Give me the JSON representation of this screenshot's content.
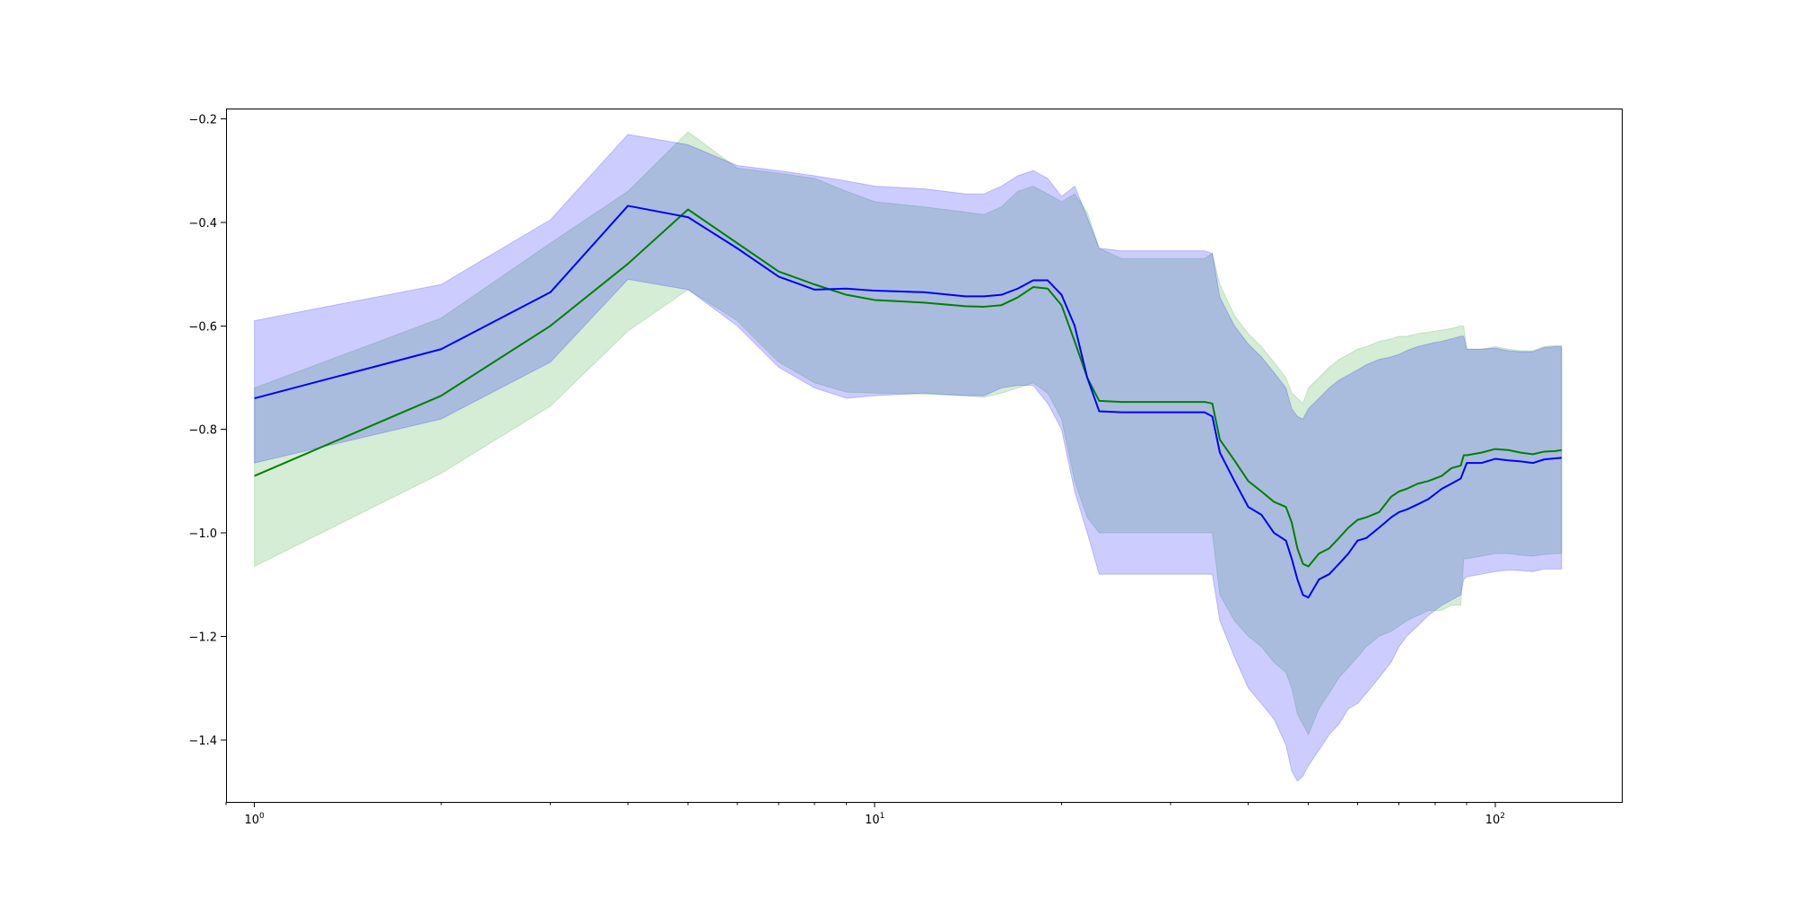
{
  "chart_data": {
    "type": "line",
    "title": "",
    "xlabel": "",
    "ylabel": "",
    "x_scale": "log",
    "xlim": [
      0.9,
      160
    ],
    "ylim": [
      -1.52,
      -0.18
    ],
    "grid": false,
    "x_ticks": [
      {
        "value": 1,
        "base": "10",
        "exp": "0"
      },
      {
        "value": 10,
        "base": "10",
        "exp": "1"
      },
      {
        "value": 100,
        "base": "10",
        "exp": "2"
      }
    ],
    "y_ticks": [
      {
        "value": -0.2,
        "label": "−0.2"
      },
      {
        "value": -0.4,
        "label": "−0.4"
      },
      {
        "value": -0.6,
        "label": "−0.6"
      },
      {
        "value": -0.8,
        "label": "−0.8"
      },
      {
        "value": -1.0,
        "label": "−1.0"
      },
      {
        "value": -1.2,
        "label": "−1.2"
      },
      {
        "value": -1.4,
        "label": "−1.4"
      }
    ],
    "x": [
      1,
      2,
      3,
      4,
      5,
      6,
      7,
      8,
      9,
      10,
      12,
      14,
      15,
      16,
      17,
      18,
      19,
      20,
      21,
      22,
      23,
      25,
      30,
      34,
      35,
      36,
      38,
      40,
      42,
      44,
      46,
      47,
      48,
      49,
      50,
      52,
      54,
      56,
      58,
      60,
      62,
      65,
      68,
      70,
      72,
      75,
      78,
      80,
      82,
      85,
      88,
      89,
      90,
      95,
      100,
      105,
      110,
      115,
      120,
      125,
      128
    ],
    "series": [
      {
        "color": "#008000",
        "band_color": "#2ca02c",
        "values": [
          -0.89,
          -0.735,
          -0.6,
          -0.48,
          -0.375,
          -0.44,
          -0.495,
          -0.52,
          -0.54,
          -0.55,
          -0.555,
          -0.562,
          -0.563,
          -0.56,
          -0.545,
          -0.525,
          -0.528,
          -0.56,
          -0.63,
          -0.7,
          -0.745,
          -0.747,
          -0.747,
          -0.747,
          -0.75,
          -0.82,
          -0.86,
          -0.9,
          -0.92,
          -0.94,
          -0.95,
          -0.98,
          -1.03,
          -1.06,
          -1.065,
          -1.04,
          -1.03,
          -1.01,
          -0.99,
          -0.975,
          -0.97,
          -0.96,
          -0.93,
          -0.92,
          -0.915,
          -0.905,
          -0.9,
          -0.895,
          -0.89,
          -0.875,
          -0.87,
          -0.85,
          -0.85,
          -0.845,
          -0.838,
          -0.84,
          -0.845,
          -0.848,
          -0.843,
          -0.842,
          -0.84
        ],
        "lower": [
          -1.065,
          -0.885,
          -0.755,
          -0.61,
          -0.53,
          -0.59,
          -0.67,
          -0.71,
          -0.728,
          -0.73,
          -0.732,
          -0.735,
          -0.738,
          -0.73,
          -0.72,
          -0.71,
          -0.73,
          -0.78,
          -0.9,
          -0.97,
          -1.0,
          -1.0,
          -1.0,
          -1.0,
          -1.0,
          -1.12,
          -1.17,
          -1.2,
          -1.22,
          -1.25,
          -1.27,
          -1.3,
          -1.35,
          -1.37,
          -1.39,
          -1.34,
          -1.31,
          -1.28,
          -1.26,
          -1.24,
          -1.22,
          -1.2,
          -1.19,
          -1.18,
          -1.17,
          -1.16,
          -1.15,
          -1.15,
          -1.15,
          -1.14,
          -1.14,
          -1.05,
          -1.05,
          -1.045,
          -1.04,
          -1.04,
          -1.043,
          -1.045,
          -1.042,
          -1.04,
          -1.04
        ],
        "upper": [
          -0.72,
          -0.585,
          -0.44,
          -0.34,
          -0.225,
          -0.295,
          -0.305,
          -0.315,
          -0.34,
          -0.36,
          -0.37,
          -0.38,
          -0.385,
          -0.37,
          -0.34,
          -0.33,
          -0.345,
          -0.36,
          -0.345,
          -0.38,
          -0.45,
          -0.47,
          -0.47,
          -0.47,
          -0.46,
          -0.52,
          -0.58,
          -0.615,
          -0.64,
          -0.67,
          -0.7,
          -0.73,
          -0.74,
          -0.75,
          -0.72,
          -0.7,
          -0.68,
          -0.665,
          -0.655,
          -0.645,
          -0.64,
          -0.63,
          -0.625,
          -0.62,
          -0.62,
          -0.615,
          -0.612,
          -0.61,
          -0.608,
          -0.605,
          -0.6,
          -0.6,
          -0.645,
          -0.645,
          -0.64,
          -0.645,
          -0.648,
          -0.648,
          -0.64,
          -0.638,
          -0.638
        ]
      },
      {
        "color": "#0000ff",
        "band_color": "#0000ff",
        "values": [
          -0.74,
          -0.645,
          -0.535,
          -0.368,
          -0.39,
          -0.45,
          -0.505,
          -0.53,
          -0.528,
          -0.532,
          -0.535,
          -0.543,
          -0.543,
          -0.54,
          -0.528,
          -0.512,
          -0.512,
          -0.54,
          -0.6,
          -0.7,
          -0.765,
          -0.767,
          -0.767,
          -0.767,
          -0.775,
          -0.845,
          -0.9,
          -0.95,
          -0.965,
          -1.0,
          -1.015,
          -1.05,
          -1.09,
          -1.12,
          -1.125,
          -1.09,
          -1.08,
          -1.06,
          -1.04,
          -1.015,
          -1.01,
          -0.99,
          -0.97,
          -0.96,
          -0.955,
          -0.945,
          -0.935,
          -0.925,
          -0.915,
          -0.905,
          -0.895,
          -0.88,
          -0.865,
          -0.865,
          -0.857,
          -0.86,
          -0.862,
          -0.865,
          -0.858,
          -0.856,
          -0.855
        ],
        "lower": [
          -0.865,
          -0.78,
          -0.67,
          -0.51,
          -0.53,
          -0.6,
          -0.68,
          -0.72,
          -0.74,
          -0.735,
          -0.73,
          -0.735,
          -0.735,
          -0.72,
          -0.715,
          -0.715,
          -0.75,
          -0.8,
          -0.92,
          -1.0,
          -1.08,
          -1.08,
          -1.08,
          -1.08,
          -1.08,
          -1.17,
          -1.24,
          -1.3,
          -1.33,
          -1.36,
          -1.41,
          -1.46,
          -1.48,
          -1.47,
          -1.45,
          -1.42,
          -1.39,
          -1.37,
          -1.34,
          -1.33,
          -1.31,
          -1.28,
          -1.25,
          -1.22,
          -1.2,
          -1.18,
          -1.16,
          -1.15,
          -1.14,
          -1.13,
          -1.12,
          -1.09,
          -1.085,
          -1.08,
          -1.075,
          -1.072,
          -1.073,
          -1.075,
          -1.07,
          -1.07,
          -1.07
        ],
        "upper": [
          -0.59,
          -0.52,
          -0.395,
          -0.23,
          -0.25,
          -0.29,
          -0.3,
          -0.31,
          -0.32,
          -0.33,
          -0.335,
          -0.345,
          -0.345,
          -0.33,
          -0.31,
          -0.3,
          -0.315,
          -0.35,
          -0.33,
          -0.39,
          -0.45,
          -0.455,
          -0.455,
          -0.455,
          -0.46,
          -0.545,
          -0.6,
          -0.635,
          -0.66,
          -0.69,
          -0.72,
          -0.76,
          -0.775,
          -0.78,
          -0.76,
          -0.74,
          -0.72,
          -0.705,
          -0.695,
          -0.685,
          -0.675,
          -0.665,
          -0.66,
          -0.655,
          -0.648,
          -0.64,
          -0.635,
          -0.632,
          -0.63,
          -0.625,
          -0.62,
          -0.62,
          -0.645,
          -0.645,
          -0.643,
          -0.648,
          -0.65,
          -0.65,
          -0.642,
          -0.64,
          -0.64
        ]
      }
    ]
  }
}
